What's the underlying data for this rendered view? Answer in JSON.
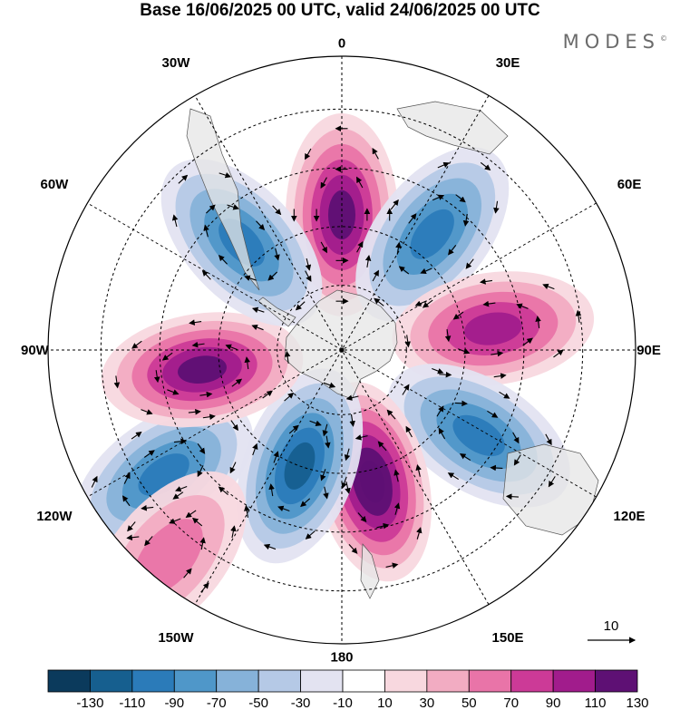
{
  "title": "Base 16/06/2025 00 UTC, valid 24/06/2025 00 UTC",
  "brand": "MODES",
  "brand_mark": "©",
  "map": {
    "projection": "south polar stereographic",
    "longitude_labels": [
      "0",
      "30E",
      "60E",
      "90E",
      "120E",
      "150E",
      "180",
      "150W",
      "120W",
      "90W",
      "60W",
      "30W"
    ],
    "vector_reference": {
      "label": "10"
    }
  },
  "colorbar": {
    "ticks": [
      "-130",
      "-110",
      "-90",
      "-70",
      "-50",
      "-30",
      "-10",
      "10",
      "30",
      "50",
      "70",
      "90",
      "110",
      "130"
    ],
    "colors": [
      "#0b3a5c",
      "#165f8f",
      "#2b7bb9",
      "#4f97c9",
      "#86b2d9",
      "#b5c9e6",
      "#e3e3f1",
      "#ffffff",
      "#f8d8df",
      "#f2acc2",
      "#e974a8",
      "#cc3a97",
      "#a11c8c",
      "#5e1074"
    ]
  },
  "anomalies": [
    {
      "lon": 0,
      "dist": 0.46,
      "value": 120
    },
    {
      "lon": 38,
      "dist": 0.5,
      "value": -110
    },
    {
      "lon": 82,
      "dist": 0.52,
      "value": 110
    },
    {
      "lon": 122,
      "dist": 0.55,
      "value": -100
    },
    {
      "lon": 167,
      "dist": 0.46,
      "value": 150
    },
    {
      "lon": -160,
      "dist": 0.42,
      "value": -130
    },
    {
      "lon": -125,
      "dist": 0.74,
      "value": -115
    },
    {
      "lon": -98,
      "dist": 0.48,
      "value": 120
    },
    {
      "lon": -43,
      "dist": 0.5,
      "value": -110
    },
    {
      "lon": -140,
      "dist": 0.92,
      "value": 60
    }
  ]
}
